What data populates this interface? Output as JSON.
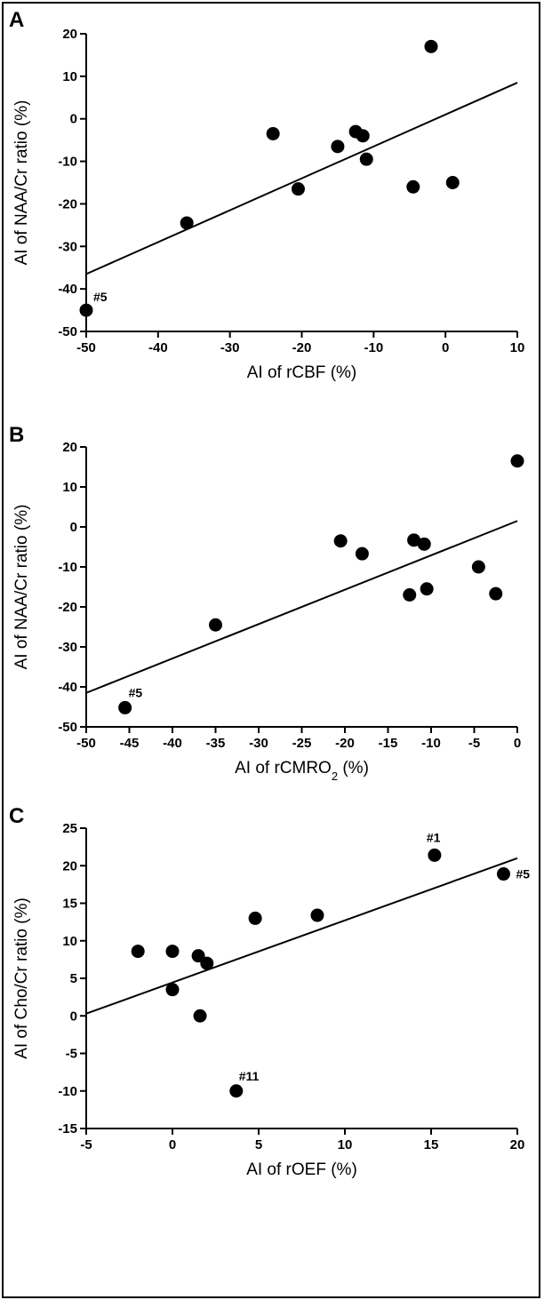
{
  "chart_data": [
    {
      "panel": "A",
      "type": "scatter",
      "xlabel": "AI of rCBF (%)",
      "ylabel": "AI of NAA/Cr ratio (%)",
      "xlim": [
        -50,
        10
      ],
      "ylim": [
        -50,
        20
      ],
      "xticks": [
        -50,
        -40,
        -30,
        -20,
        -10,
        0,
        10
      ],
      "yticks": [
        -50,
        -40,
        -30,
        -20,
        -10,
        0,
        10,
        20
      ],
      "points": [
        {
          "x": -50,
          "y": -45,
          "label": "#5"
        },
        {
          "x": -36,
          "y": -24.5
        },
        {
          "x": -24,
          "y": -3.5
        },
        {
          "x": -20.5,
          "y": -16.5
        },
        {
          "x": -15,
          "y": -6.5
        },
        {
          "x": -12.5,
          "y": -3
        },
        {
          "x": -11.5,
          "y": -4
        },
        {
          "x": -11,
          "y": -9.5
        },
        {
          "x": -4.5,
          "y": -16
        },
        {
          "x": -2,
          "y": 17
        },
        {
          "x": 1,
          "y": -15
        }
      ],
      "fit": {
        "x": [
          -50,
          10
        ],
        "y": [
          -36.5,
          8.5
        ]
      },
      "grid": false
    },
    {
      "panel": "B",
      "type": "scatter",
      "xlabel_main": "AI of rCMRO",
      "xlabel_sub": "2",
      "xlabel_tail": " (%)",
      "ylabel": "AI of NAA/Cr ratio (%)",
      "xlim": [
        -50,
        0
      ],
      "ylim": [
        -50,
        20
      ],
      "xticks": [
        -50,
        -45,
        -40,
        -35,
        -30,
        -25,
        -20,
        -15,
        -10,
        -5,
        0
      ],
      "yticks": [
        -50,
        -40,
        -30,
        -20,
        -10,
        0,
        10,
        20
      ],
      "points": [
        {
          "x": -45.5,
          "y": -45.2,
          "label": "#5"
        },
        {
          "x": -35,
          "y": -24.5
        },
        {
          "x": -20.5,
          "y": -3.5
        },
        {
          "x": -18,
          "y": -6.7
        },
        {
          "x": -12.5,
          "y": -17
        },
        {
          "x": -12,
          "y": -3.3
        },
        {
          "x": -10.8,
          "y": -4.3
        },
        {
          "x": -10.5,
          "y": -15.5
        },
        {
          "x": -4.5,
          "y": -10
        },
        {
          "x": -2.5,
          "y": -16.7
        },
        {
          "x": 0,
          "y": 16.5
        }
      ],
      "fit": {
        "x": [
          -50,
          0
        ],
        "y": [
          -41.5,
          1.5
        ]
      },
      "grid": false
    },
    {
      "panel": "C",
      "type": "scatter",
      "xlabel": "AI of rOEF (%)",
      "ylabel": "AI of Cho/Cr ratio (%)",
      "xlim": [
        -5,
        20
      ],
      "ylim": [
        -15,
        25
      ],
      "xticks": [
        -5,
        0,
        5,
        10,
        15,
        20
      ],
      "yticks": [
        -15,
        -10,
        -5,
        0,
        5,
        10,
        15,
        20,
        25
      ],
      "points": [
        {
          "x": -2,
          "y": 8.6
        },
        {
          "x": 0,
          "y": 8.6
        },
        {
          "x": 0,
          "y": 3.5
        },
        {
          "x": 1.5,
          "y": 8
        },
        {
          "x": 1.6,
          "y": 0
        },
        {
          "x": 2,
          "y": 7
        },
        {
          "x": 3.7,
          "y": -10,
          "label": "#11"
        },
        {
          "x": 4.8,
          "y": 13
        },
        {
          "x": 8.4,
          "y": 13.4
        },
        {
          "x": 15.2,
          "y": 21.4,
          "label": "#1"
        },
        {
          "x": 19.2,
          "y": 18.9,
          "label": "#5"
        }
      ],
      "fit": {
        "x": [
          -5,
          20
        ],
        "y": [
          0.3,
          21
        ]
      },
      "grid": false
    }
  ]
}
